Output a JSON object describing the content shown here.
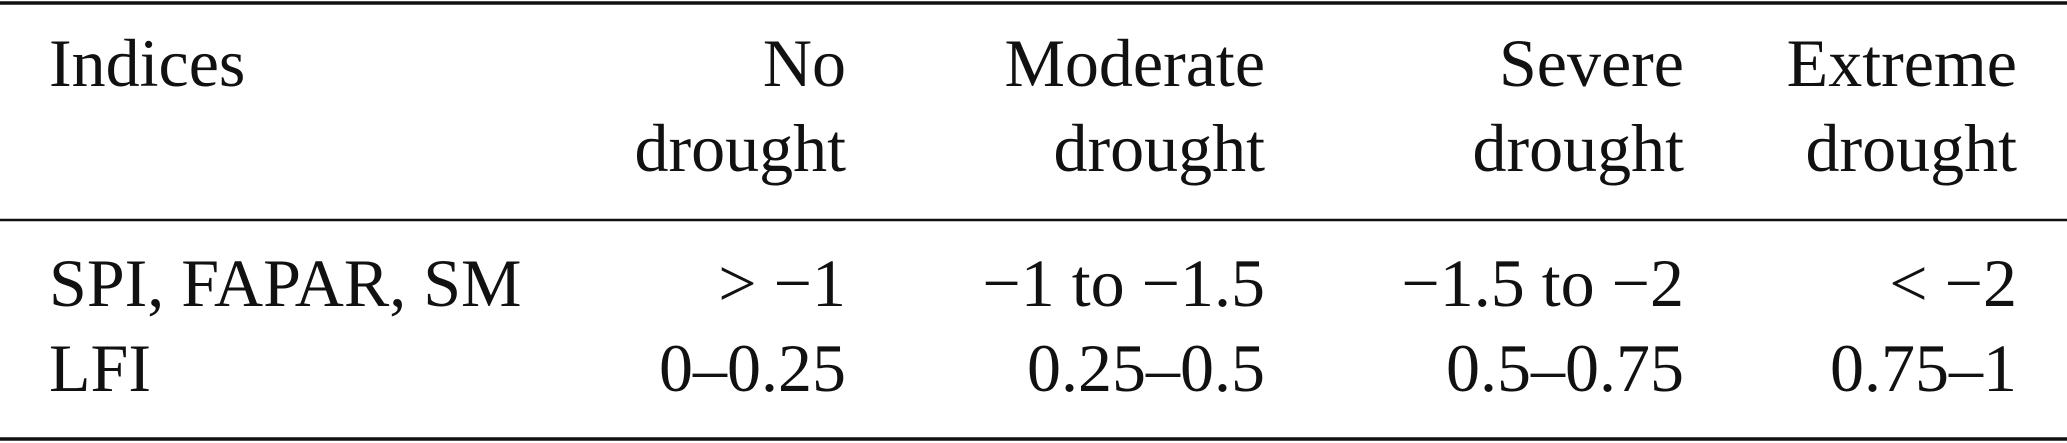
{
  "table": {
    "header": [
      [
        "Indices"
      ],
      [
        "No",
        "drought"
      ],
      [
        "Moderate",
        "drought"
      ],
      [
        "Severe",
        "drought"
      ],
      [
        "Extreme",
        "drought"
      ]
    ],
    "rows": [
      [
        "SPI, FAPAR, SM",
        "> −1",
        "−1 to −1.5",
        "−1.5 to −2",
        "< −2"
      ],
      [
        "LFI",
        "0–0.25",
        "0.25–0.5",
        "0.5–0.75",
        "0.75–1"
      ]
    ]
  }
}
